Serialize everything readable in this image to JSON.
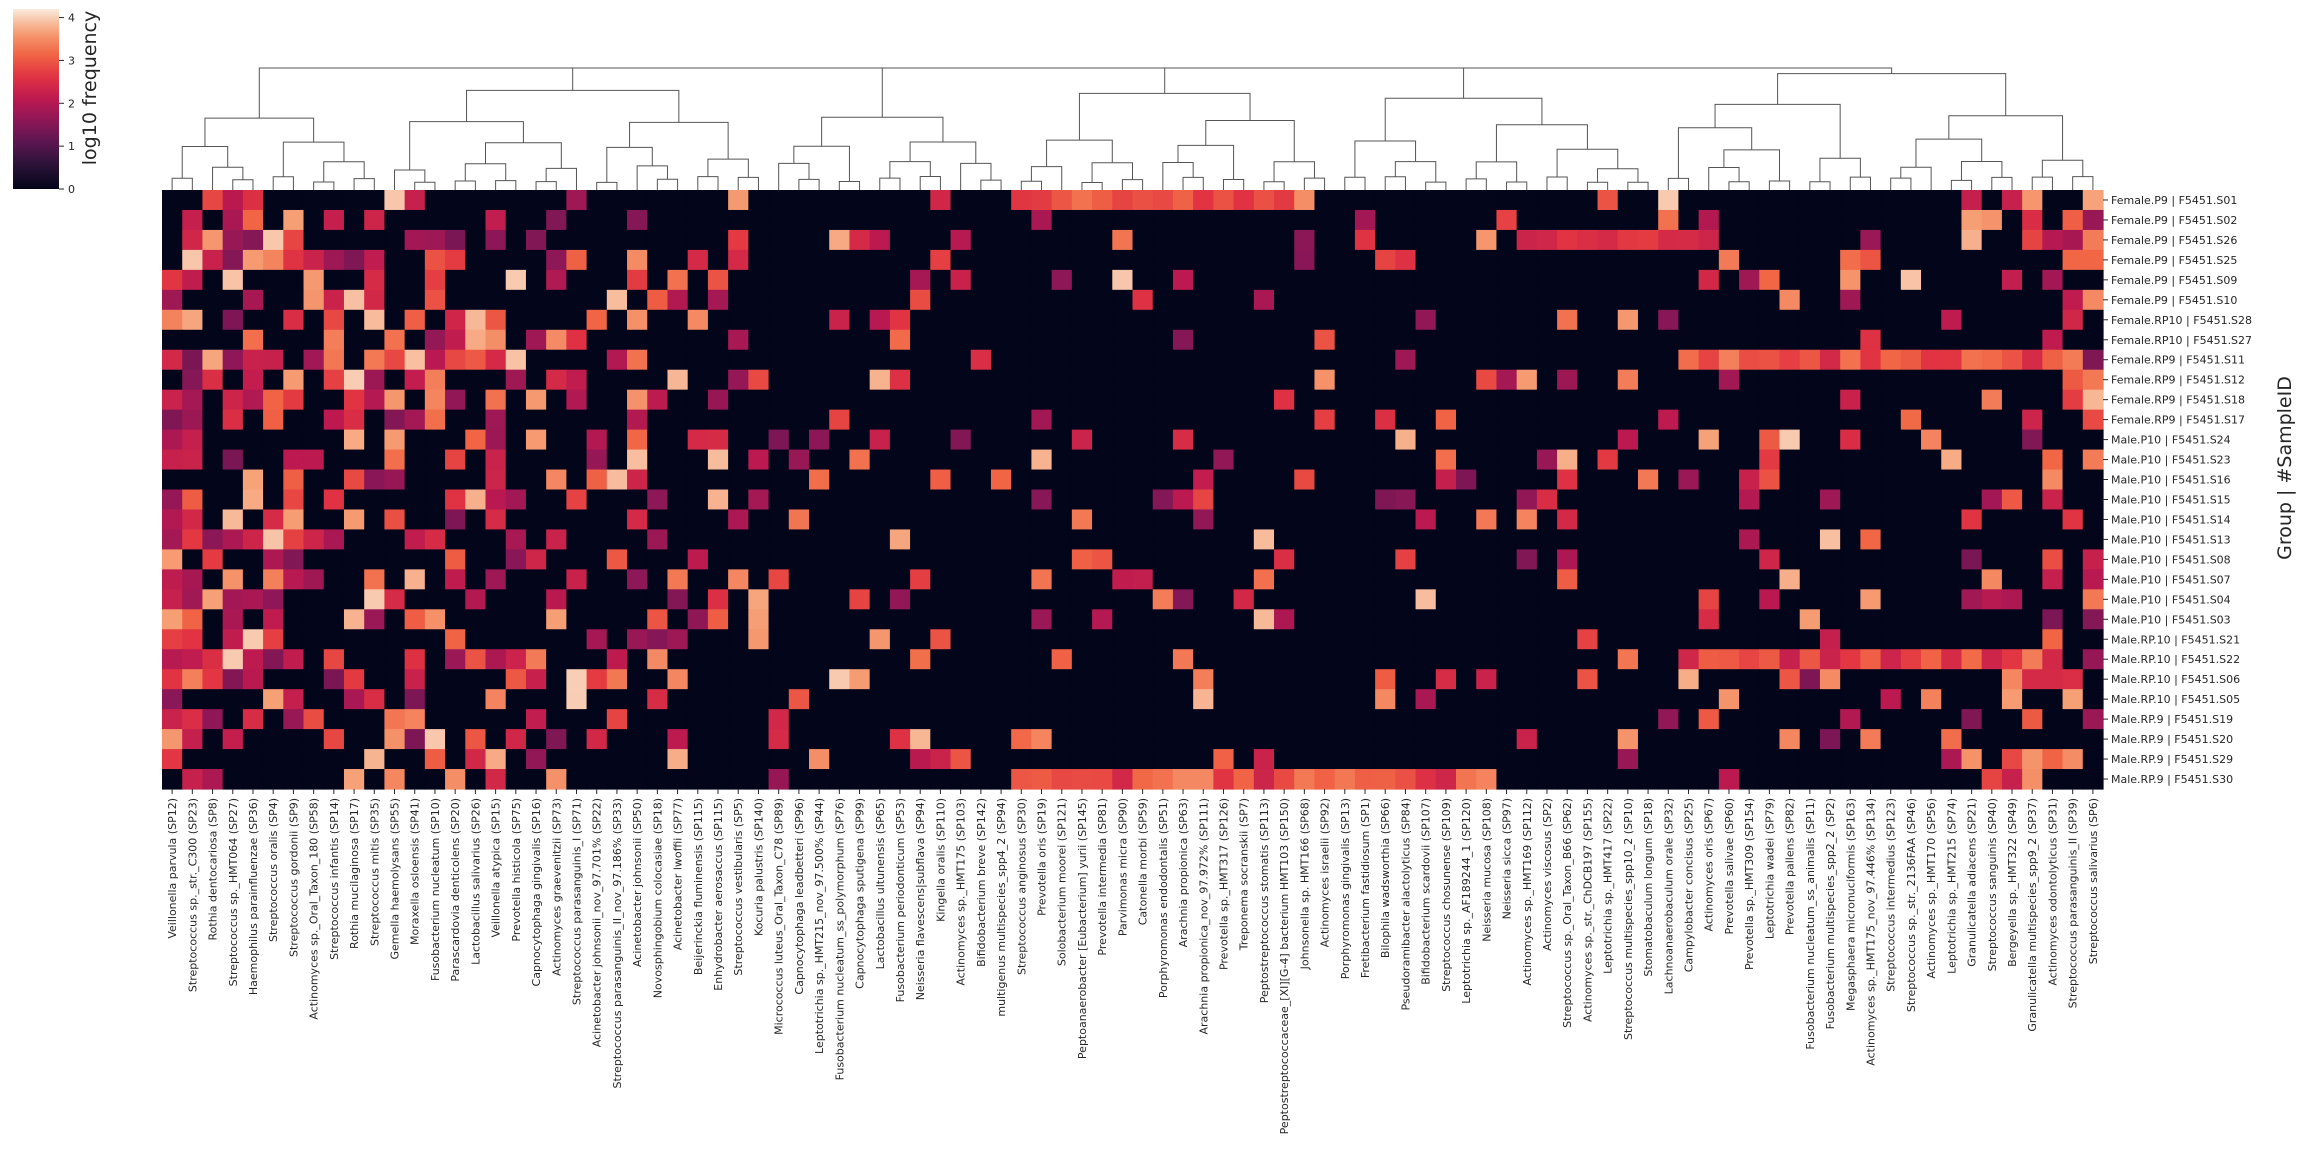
{
  "chart_data": {
    "type": "heatmap",
    "colormap": "rocket",
    "ylabel": "Group | #SampleID",
    "colorbar": {
      "label": "log10 frequency",
      "ticks": [
        0,
        1,
        2,
        3,
        4
      ],
      "range": [
        0,
        4.2
      ]
    },
    "dendrogram": "column (top)",
    "rows": [
      "Female.P9 | F5451.S01",
      "Female.P9 | F5451.S02",
      "Female.P9 | F5451.S26",
      "Female.P9 | F5451.S25",
      "Female.P9 | F5451.S09",
      "Female.P9 | F5451.S10",
      "Female.RP10 | F5451.S28",
      "Female.RP10 | F5451.S27",
      "Female.RP9 | F5451.S11",
      "Female.RP9 | F5451.S12",
      "Female.RP9 | F5451.S18",
      "Female.RP9 | F5451.S17",
      "Male.P10 | F5451.S24",
      "Male.P10 | F5451.S23",
      "Male.P10 | F5451.S16",
      "Male.P10 | F5451.S15",
      "Male.P10 | F5451.S14",
      "Male.P10 | F5451.S13",
      "Male.P10 | F5451.S08",
      "Male.P10 | F5451.S07",
      "Male.P10 | F5451.S04",
      "Male.P10 | F5451.S03",
      "Male.RP.10 | F5451.S21",
      "Male.RP.10 | F5451.S22",
      "Male.RP.10 | F5451.S06",
      "Male.RP.10 | F5451.S05",
      "Male.RP.9 | F5451.S19",
      "Male.RP.9 | F5451.S20",
      "Male.RP.9 | F5451.S29",
      "Male.RP.9 | F5451.S30"
    ],
    "columns": [
      "Veillonella parvula (SP12)",
      "Streptococcus sp._str._C300 (SP23)",
      "Rothia dentocariosa (SP8)",
      "Streptococcus sp._HMT064 (SP27)",
      "Haemophilus parainfluenzae (SP36)",
      "Streptococcus oralis (SP4)",
      "Streptococcus gordonii (SP9)",
      "Actinomyces sp._Oral_Taxon_180 (SP58)",
      "Streptococcus infantis (SP14)",
      "Rothia mucilaginosa (SP17)",
      "Streptococcus mitis (SP35)",
      "Gemella haemolysans (SP55)",
      "Moraxella osloensis (SP41)",
      "Fusobacterium nucleatum (SP10)",
      "Parascardovia denticolens (SP20)",
      "Lactobacillus salivarius (SP26)",
      "Veillonella atypica (SP15)",
      "Prevotella histicola (SP75)",
      "Capnocytophaga gingivalis (SP16)",
      "Actinomyces graevenitzii (SP73)",
      "Streptococcus parasanguinis_I (SP71)",
      "Acinetobacter johnsonii_nov_97.701% (SP22)",
      "Streptococcus parasanguinis_II_nov_97.186% (SP33)",
      "Acinetobacter johnsonii (SP50)",
      "Novosphingobium colocasiae (SP18)",
      "Acinetobacter lwoffii (SP77)",
      "Beijerinckia fluminensis (SP115)",
      "Enhydrobacter aerosaccus (SP115)",
      "Streptococcus vestibularis (SP5)",
      "Kocuria palustris (SP140)",
      "Micrococcus luteus_Oral_Taxon_C78 (SP89)",
      "Capnocytophaga leadbetteri (SP96)",
      "Leptotrichia sp._HMT215_nov_97.500% (SP44)",
      "Fusobacterium nucleatum_ss_polymorphum (SP76)",
      "Capnocytophaga sputigena (SP99)",
      "Lactobacillus ultunensis (SP65)",
      "Fusobacterium periodonticum (SP53)",
      "Neisseria flavescens|subflava (SP94)",
      "Kingella oralis (SP110)",
      "Actinomyces sp._HMT175 (SP103)",
      "Bifidobacterium breve (SP142)",
      "multigenus multispecies_spp4_2 (SP94)",
      "Streptococcus anginosus (SP30)",
      "Prevotella oris (SP19)",
      "Solobacterium moorei (SP121)",
      "Peptoanaerobacter [Eubacterium] yurii (SP145)",
      "Prevotella intermedia (SP81)",
      "Parvimonas micra (SP90)",
      "Catonella morbi (SP59)",
      "Porphyromonas endodontalis (SP51)",
      "Arachnia propionica (SP63)",
      "Arachnia propionica_nov_97.972% (SP111)",
      "Prevotella sp._HMT317 (SP126)",
      "Treponema socranskii (SP7)",
      "Peptostreptococcus stomatis (SP113)",
      "Peptostreptococcaceae_[XI][G-4] bacterium HMT103 (SP150)",
      "Johnsonella sp. HMT166 (SP68)",
      "Actinomyces israelii (SP92)",
      "Porphyromonas gingivalis (SP13)",
      "Fretibacterium fastidiosum (SP1)",
      "Bilophila wadsworthia (SP66)",
      "Pseudoramibacter alactolyticus (SP84)",
      "Bifidobacterium scardovii (SP107)",
      "Streptococcus chosunense (SP109)",
      "Leptotrichia sp._AF189244_1 (SP120)",
      "Neisseria mucosa (SP108)",
      "Neisseria sicca (SP97)",
      "Actinomyces sp._HMT169 (SP112)",
      "Actinomyces viscosus (SP2)",
      "Streptococcus sp._Oral_Taxon_B66 (SP62)",
      "Actinomyces sp._str._ChDCB197 (SP155)",
      "Leptotrichia sp._HMT417 (SP22)",
      "Streptococcus multispecies_spp10_2 (SP10)",
      "Stomatobaculum longum (SP18)",
      "Lachnoanaerobaculum orale (SP32)",
      "Campylobacter concisus (SP25)",
      "Actinomyces oris (SP67)",
      "Prevotella salivae (SP60)",
      "Prevotella sp._HMT309 (SP154)",
      "Leptotrichia wadei (SP79)",
      "Prevotella pallens (SP82)",
      "Fusobacterium nucleatum_ss_animalis (SP11)",
      "Fusobacterium multispecies_spp2_2 (SP2)",
      "Megasphaera micronuciformis (SP163)",
      "Actinomyces sp._HMT175_nov_97.446% (SP134)",
      "Streptococcus intermedius (SP123)",
      "Streptococcus sp._str._2136FAA (SP46)",
      "Actinomyces sp._HMT170 (SP56)",
      "Leptotrichia sp._HMT215 (SP74)",
      "Granulicatella adiacens (SP21)",
      "Streptococcus sanguinis (SP40)",
      "Bergeyella sp._HMT322 (SP49)",
      "Granulicatella multispecies_spp9_2 (SP37)",
      "Actinomyces odontolyticus (SP31)",
      "Streptococcus parasanguinis_II (SP39)",
      "Streptococcus salivarius (SP6)"
    ]
  }
}
